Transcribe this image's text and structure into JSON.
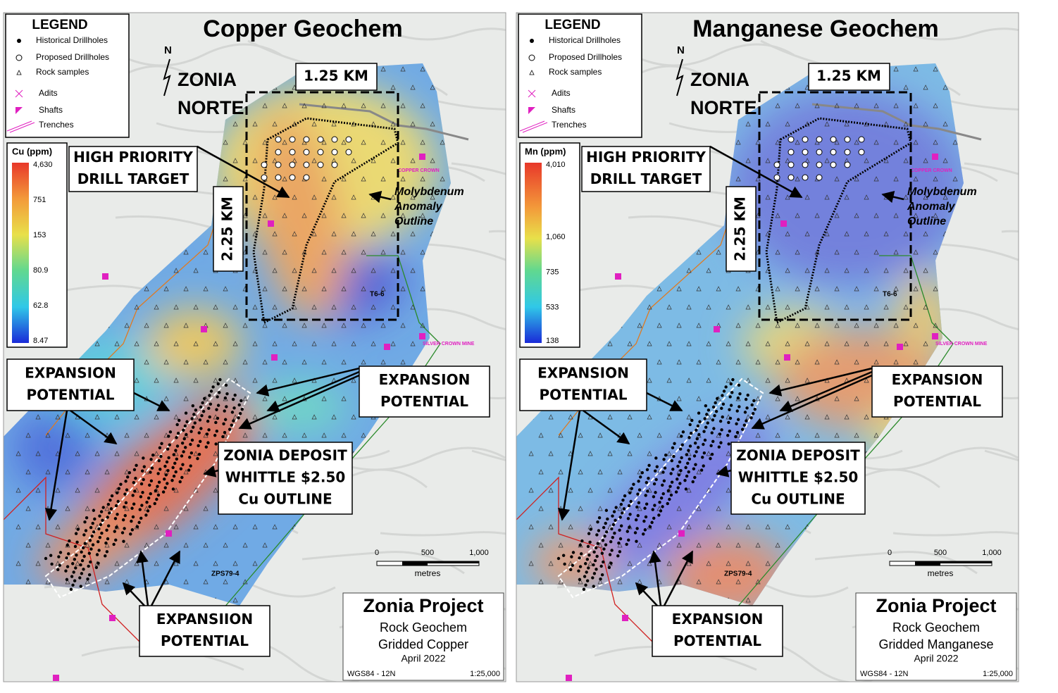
{
  "panels": [
    {
      "title": "Copper Geochem",
      "legend": {
        "title": "LEGEND",
        "items": [
          "Historical Drillholes",
          "Proposed Drillholes",
          "Rock samples",
          "Adits",
          "Shafts",
          "Trenches"
        ]
      },
      "colorbar": {
        "title": "Cu (ppm)",
        "labels": [
          "4,630",
          "751",
          "153",
          "80.9",
          "62.8",
          "8.47"
        ]
      },
      "north": "N",
      "area": [
        "ZONIA",
        "NORTE"
      ],
      "width_label": "1.25 KM",
      "height_label": "2.25 KM",
      "target": [
        "HIGH PRIORITY",
        "DRILL TARGET"
      ],
      "moly": [
        "Molybdenum",
        "Anomaly",
        "Outline"
      ],
      "expansion_left": [
        "EXPANSION",
        "POTENTIAL"
      ],
      "expansion_right": [
        "EXPANSION",
        "POTENTIAL"
      ],
      "deposit": [
        "ZONIA DEPOSIT",
        "WHITTLE $2.50",
        "Cu OUTLINE"
      ],
      "expansion_bottom": [
        "EXPANSIION",
        "POTENTIAL"
      ],
      "map_labels": [
        "T6-6",
        "ZPS79-4",
        "SILVER CROWN MINE",
        "COPPER CROWN"
      ],
      "scale": {
        "ticks": [
          "0",
          "500",
          "1,000"
        ],
        "unit": "metres"
      },
      "title_block": {
        "project": "Zonia Project",
        "lines": [
          "Rock Geochem",
          "Gridded Copper",
          "April 2022"
        ],
        "datum": "WGS84 - 12N",
        "scale": "1:25,000"
      }
    },
    {
      "title": "Manganese  Geochem",
      "legend": {
        "title": "LEGEND",
        "items": [
          "Historical Drillholes",
          "Proposed Drillholes",
          "Rock samples",
          "Adits",
          "Shafts",
          "Trenches"
        ]
      },
      "colorbar": {
        "title": "Mn (ppm)",
        "labels": [
          "4,010",
          "1,060",
          "735",
          "533",
          "138"
        ]
      },
      "north": "N",
      "area": [
        "ZONIA",
        "NORTE"
      ],
      "width_label": "1.25 KM",
      "height_label": "2.25 KM",
      "target": [
        "HIGH PRIORITY",
        "DRILL TARGET"
      ],
      "moly": [
        "Molybdenum",
        "Anomaly",
        "Outline"
      ],
      "expansion_left": [
        "EXPANSION",
        "POTENTIAL"
      ],
      "expansion_right": [
        "EXPANSION",
        "POTENTIAL"
      ],
      "deposit": [
        "ZONIA DEPOSIT",
        "WHITTLE $2.50",
        "Cu OUTLINE"
      ],
      "expansion_bottom": [
        "EXPANSION",
        "POTENTIAL"
      ],
      "map_labels": [
        "T6-6",
        "ZPS79-4",
        "SILVER CROWN MINE",
        "COPPER CROWN"
      ],
      "scale": {
        "ticks": [
          "0",
          "500",
          "1,000"
        ],
        "unit": "metres"
      },
      "title_block": {
        "project": "Zonia Project",
        "lines": [
          "Rock Geochem",
          "Gridded Manganese",
          "April 2022"
        ],
        "datum": "WGS84 - 12N",
        "scale": "1:25,000"
      }
    }
  ]
}
